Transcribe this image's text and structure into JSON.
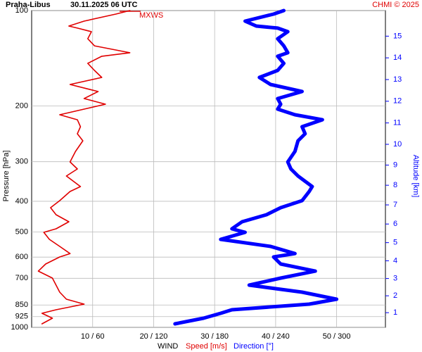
{
  "chart_data": {
    "type": "line",
    "title": "Praha-Libus",
    "subtitle": "30.11.2025 06 UTC",
    "credit": "CHMI © 2025",
    "annotation": "MXWS",
    "x_label": "WIND",
    "y_label": "Pressure [hPa]",
    "y2_label": "Altitude [km]",
    "pressure": [
      100,
      102.6,
      108,
      111.9,
      113.6,
      116.6,
      122.7,
      129.2,
      135.9,
      139.4,
      146.8,
      154.5,
      162.6,
      171.1,
      180.1,
      189.6,
      197.5,
      204.7,
      213.3,
      221.1,
      232.6,
      244.8,
      257.7,
      278.3,
      300.4,
      316.2,
      332.8,
      359.4,
      372.5,
      398.1,
      419,
      441,
      464.2,
      488.6,
      501.2,
      527.6,
      555.3,
      584.8,
      599.5,
      631,
      664.3,
      699,
      735.6,
      774.3,
      815,
      844.6,
      879.9,
      902.7,
      935.6,
      974.7
    ],
    "series": [
      {
        "name": "Speed [m/s]",
        "color": "#e00000",
        "values": [
          16.1,
          13.8,
          8.6,
          6.1,
          7.5,
          9.8,
          9.2,
          10.3,
          16.1,
          11.5,
          9.2,
          10.3,
          11.5,
          6.3,
          10.9,
          8.6,
          12.1,
          8.6,
          4.6,
          7.5,
          8.0,
          7.5,
          8.4,
          7.2,
          6.3,
          7.5,
          5.7,
          8.0,
          6.3,
          4.6,
          3.1,
          4.0,
          6.1,
          4.0,
          2.0,
          2.9,
          4.6,
          6.3,
          4.6,
          2.3,
          1.1,
          3.4,
          4.0,
          4.6,
          5.7,
          8.6,
          4.0,
          1.7,
          3.4,
          1.7
        ]
      },
      {
        "name": "Direction [°]",
        "color": "#0000ff",
        "axis": "x2",
        "values": [
          248,
          238,
          210,
          221,
          242,
          252,
          242,
          248,
          252,
          242,
          248,
          242,
          224,
          235,
          266,
          242,
          245,
          242,
          259,
          286,
          266,
          269,
          262,
          259,
          252,
          255,
          262,
          276,
          273,
          266,
          245,
          231,
          207,
          197,
          210,
          186,
          235,
          259,
          238,
          245,
          279,
          245,
          214,
          266,
          300,
          273,
          197,
          186,
          169,
          141
        ]
      }
    ],
    "xlim": [
      0,
      58
    ],
    "x2lim": [
      0,
      348
    ],
    "xticks": [
      {
        "value": 10,
        "label": "10 / 60"
      },
      {
        "value": 20,
        "label": "20 / 120"
      },
      {
        "value": 30,
        "label": "30 / 180"
      },
      {
        "value": 40,
        "label": "40 / 240"
      },
      {
        "value": 50,
        "label": "50 / 300"
      }
    ],
    "ylim": [
      1000,
      100
    ],
    "ylog": true,
    "yticks": [
      100,
      200,
      300,
      400,
      500,
      600,
      700,
      850,
      925,
      1000
    ],
    "y2ticks": [
      1,
      2,
      3,
      4,
      5,
      6,
      7,
      8,
      9,
      10,
      11,
      12,
      13,
      14,
      15
    ],
    "grid": true
  }
}
